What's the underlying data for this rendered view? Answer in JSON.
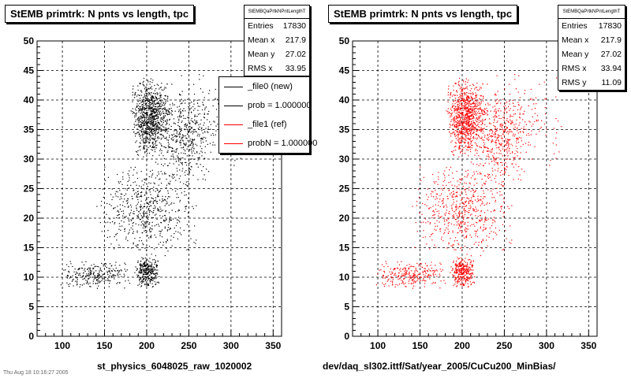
{
  "colors": {
    "file0": "#000000",
    "file1": "#ff0000"
  },
  "footer_text": "Thu Aug 18 10:16:27 2005",
  "panels": [
    {
      "title": "StEMB primtrk: N pnts vs length, tpc",
      "stats": {
        "header": "StEMBQaPrtkNPntLengthT",
        "rows": [
          {
            "label": "Entries",
            "value": "17830"
          },
          {
            "label": "Mean x",
            "value": "217.9"
          },
          {
            "label": "Mean y",
            "value": "27.02"
          },
          {
            "label": "RMS x",
            "value": "33.95"
          }
        ]
      },
      "legend": [
        {
          "text": "_file0 (new)",
          "color": "#000000"
        },
        {
          "text": "prob = 1.000000",
          "color": "#000000"
        },
        {
          "text": "_file1 (ref)",
          "color": "#ff0000"
        },
        {
          "text": "probN = 1.000000",
          "color": "#ff0000"
        }
      ],
      "xtitle": "st_physics_6048025_raw_1020002"
    },
    {
      "title": "StEMB primtrk: N pnts vs length, tpc",
      "stats": {
        "header": "StEMBQaPrtkNPntLengthT",
        "rows": [
          {
            "label": "Entries",
            "value": "17830"
          },
          {
            "label": "Mean x",
            "value": "217.9"
          },
          {
            "label": "Mean y",
            "value": "27.02"
          },
          {
            "label": "RMS x",
            "value": "33.94"
          },
          {
            "label": "RMS y",
            "value": "11.09"
          }
        ]
      },
      "xtitle": "dev/daq_sl302.ittf/Sat/year_2005/CuCu200_MinBias/"
    }
  ],
  "chart_data": [
    {
      "type": "scatter",
      "title": "StEMB primtrk: N pnts vs length, tpc",
      "xlabel": "st_physics_6048025_raw_1020002",
      "ylabel": "",
      "xlim": [
        70,
        360
      ],
      "ylim": [
        0,
        50
      ],
      "xticks": [
        100,
        150,
        200,
        250,
        300,
        350
      ],
      "yticks": [
        0,
        5,
        10,
        15,
        20,
        25,
        30,
        35,
        40,
        45,
        50
      ],
      "grid": true,
      "legend_position": "top-right",
      "series": [
        {
          "name": "_file0 (new)",
          "color": "#000000",
          "entries": 17830,
          "clusters": [
            {
              "x": [
                180,
                230
              ],
              "y": [
                30,
                44
              ],
              "weight": 0.36
            },
            {
              "x": [
                185,
                215
              ],
              "y": [
                8,
                14
              ],
              "weight": 0.12
            },
            {
              "x": [
                215,
                275
              ],
              "y": [
                25,
                42
              ],
              "weight": 0.14
            },
            {
              "x": [
                95,
                185
              ],
              "y": [
                8,
                13
              ],
              "weight": 0.1
            },
            {
              "x": [
                140,
                260
              ],
              "y": [
                13,
                30
              ],
              "weight": 0.22
            },
            {
              "x": [
                200,
                330
              ],
              "y": [
                28,
                45
              ],
              "weight": 0.06
            }
          ]
        }
      ]
    },
    {
      "type": "scatter",
      "title": "StEMB primtrk: N pnts vs length, tpc",
      "xlabel": "dev/daq_sl302.ittf/Sat/year_2005/CuCu200_MinBias/",
      "ylabel": "",
      "xlim": [
        70,
        360
      ],
      "ylim": [
        0,
        50
      ],
      "xticks": [
        100,
        150,
        200,
        250,
        300,
        350
      ],
      "yticks": [
        0,
        5,
        10,
        15,
        20,
        25,
        30,
        35,
        40,
        45,
        50
      ],
      "grid": true,
      "series": [
        {
          "name": "_file1 (ref)",
          "color": "#ff0000",
          "entries": 17830,
          "clusters": [
            {
              "x": [
                180,
                230
              ],
              "y": [
                30,
                44
              ],
              "weight": 0.36
            },
            {
              "x": [
                185,
                215
              ],
              "y": [
                8,
                14
              ],
              "weight": 0.12
            },
            {
              "x": [
                215,
                275
              ],
              "y": [
                25,
                42
              ],
              "weight": 0.14
            },
            {
              "x": [
                95,
                185
              ],
              "y": [
                8,
                13
              ],
              "weight": 0.1
            },
            {
              "x": [
                140,
                260
              ],
              "y": [
                13,
                30
              ],
              "weight": 0.22
            },
            {
              "x": [
                200,
                330
              ],
              "y": [
                28,
                45
              ],
              "weight": 0.06
            }
          ]
        }
      ]
    }
  ]
}
